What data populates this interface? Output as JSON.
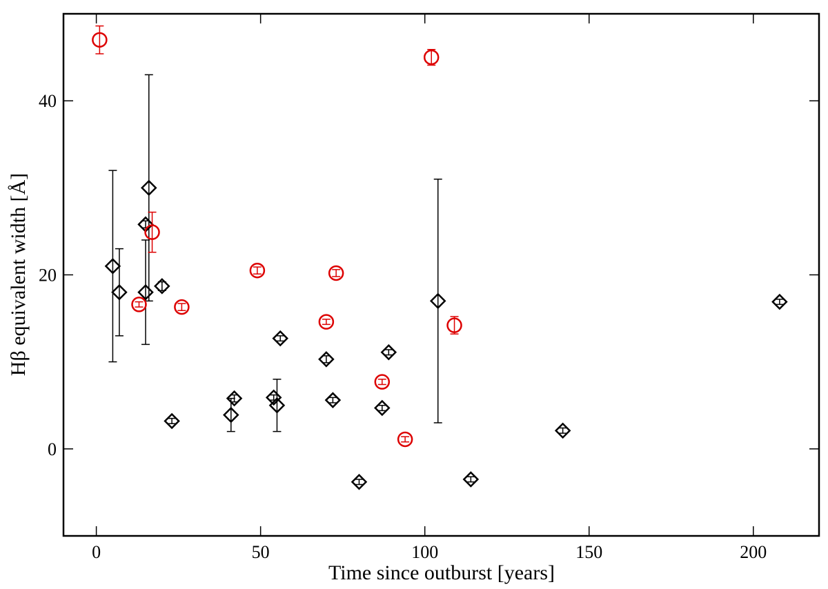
{
  "chart_data": {
    "type": "scatter",
    "xlabel": "Time since outburst [years]",
    "ylabel": "Hβ equivalent width [Å]",
    "xlim": [
      -10,
      220
    ],
    "xticks": [
      0,
      50,
      100,
      150,
      200
    ],
    "ylim": [
      -10,
      50
    ],
    "yticks": [
      0,
      20,
      40
    ],
    "series": [
      {
        "color": "#000000",
        "marker": "diamond",
        "x": [
          5,
          7,
          15,
          15,
          16,
          20,
          23,
          41,
          42,
          54,
          55,
          56,
          70,
          72,
          80,
          87,
          89,
          104,
          114,
          142,
          208
        ],
        "values": [
          21,
          18,
          25.8,
          18,
          30,
          18.7,
          3.2,
          3.9,
          5.8,
          5.9,
          5,
          12.7,
          10.3,
          5.6,
          -3.8,
          4.7,
          11.1,
          17,
          -3.5,
          2.1,
          16.9
        ],
        "errors": [
          11,
          5,
          0.4,
          6,
          13,
          0.5,
          0.3,
          1.9,
          0.4,
          0.3,
          3,
          0.3,
          0.4,
          0.3,
          0.3,
          0.3,
          0.3,
          14,
          0.3,
          0.3,
          0.3
        ]
      },
      {
        "color": "#dd0000",
        "marker": "circle",
        "x": [
          1,
          13,
          17,
          26,
          49,
          70,
          73,
          87,
          94,
          102,
          109
        ],
        "values": [
          47,
          16.6,
          24.9,
          16.3,
          20.5,
          14.6,
          20.2,
          7.7,
          1.1,
          45,
          14.2
        ],
        "errors": [
          1.6,
          0.3,
          2.3,
          0.4,
          0.4,
          0.3,
          0.4,
          0.3,
          0.3,
          0.9,
          1
        ]
      }
    ]
  }
}
